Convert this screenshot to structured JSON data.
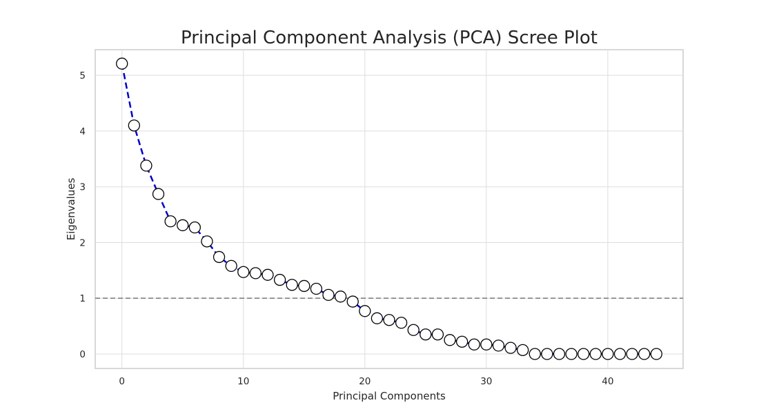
{
  "chart_data": {
    "type": "line",
    "title": "Principal Component Analysis (PCA) Scree Plot",
    "xlabel": "Principal Components",
    "ylabel": "Eigenvalues",
    "xlim": [
      -2.2,
      46.2
    ],
    "ylim": [
      -0.26,
      5.46
    ],
    "xticks": [
      0,
      10,
      20,
      30,
      40
    ],
    "yticks": [
      0,
      1,
      2,
      3,
      4,
      5
    ],
    "grid": true,
    "reference_line": {
      "y": 1,
      "style": "dashed",
      "color": "#808080"
    },
    "line_color": "#0000cc",
    "line_style": "dashed",
    "marker": {
      "shape": "circle",
      "face": "#ffffff",
      "edge": "#000000"
    },
    "x": [
      0,
      1,
      2,
      3,
      4,
      5,
      6,
      7,
      8,
      9,
      10,
      11,
      12,
      13,
      14,
      15,
      16,
      17,
      18,
      19,
      20,
      21,
      22,
      23,
      24,
      25,
      26,
      27,
      28,
      29,
      30,
      31,
      32,
      33,
      34,
      35,
      36,
      37,
      38,
      39,
      40,
      41,
      42,
      43,
      44
    ],
    "values": [
      5.21,
      4.1,
      3.38,
      2.87,
      2.38,
      2.31,
      2.27,
      2.02,
      1.74,
      1.58,
      1.47,
      1.45,
      1.42,
      1.33,
      1.24,
      1.22,
      1.17,
      1.06,
      1.03,
      0.94,
      0.77,
      0.64,
      0.61,
      0.56,
      0.43,
      0.35,
      0.35,
      0.25,
      0.22,
      0.17,
      0.17,
      0.15,
      0.11,
      0.07,
      0.0,
      0.0,
      0.0,
      0.0,
      0.0,
      0.0,
      0.0,
      0.0,
      0.0,
      0.0,
      0.0
    ]
  }
}
